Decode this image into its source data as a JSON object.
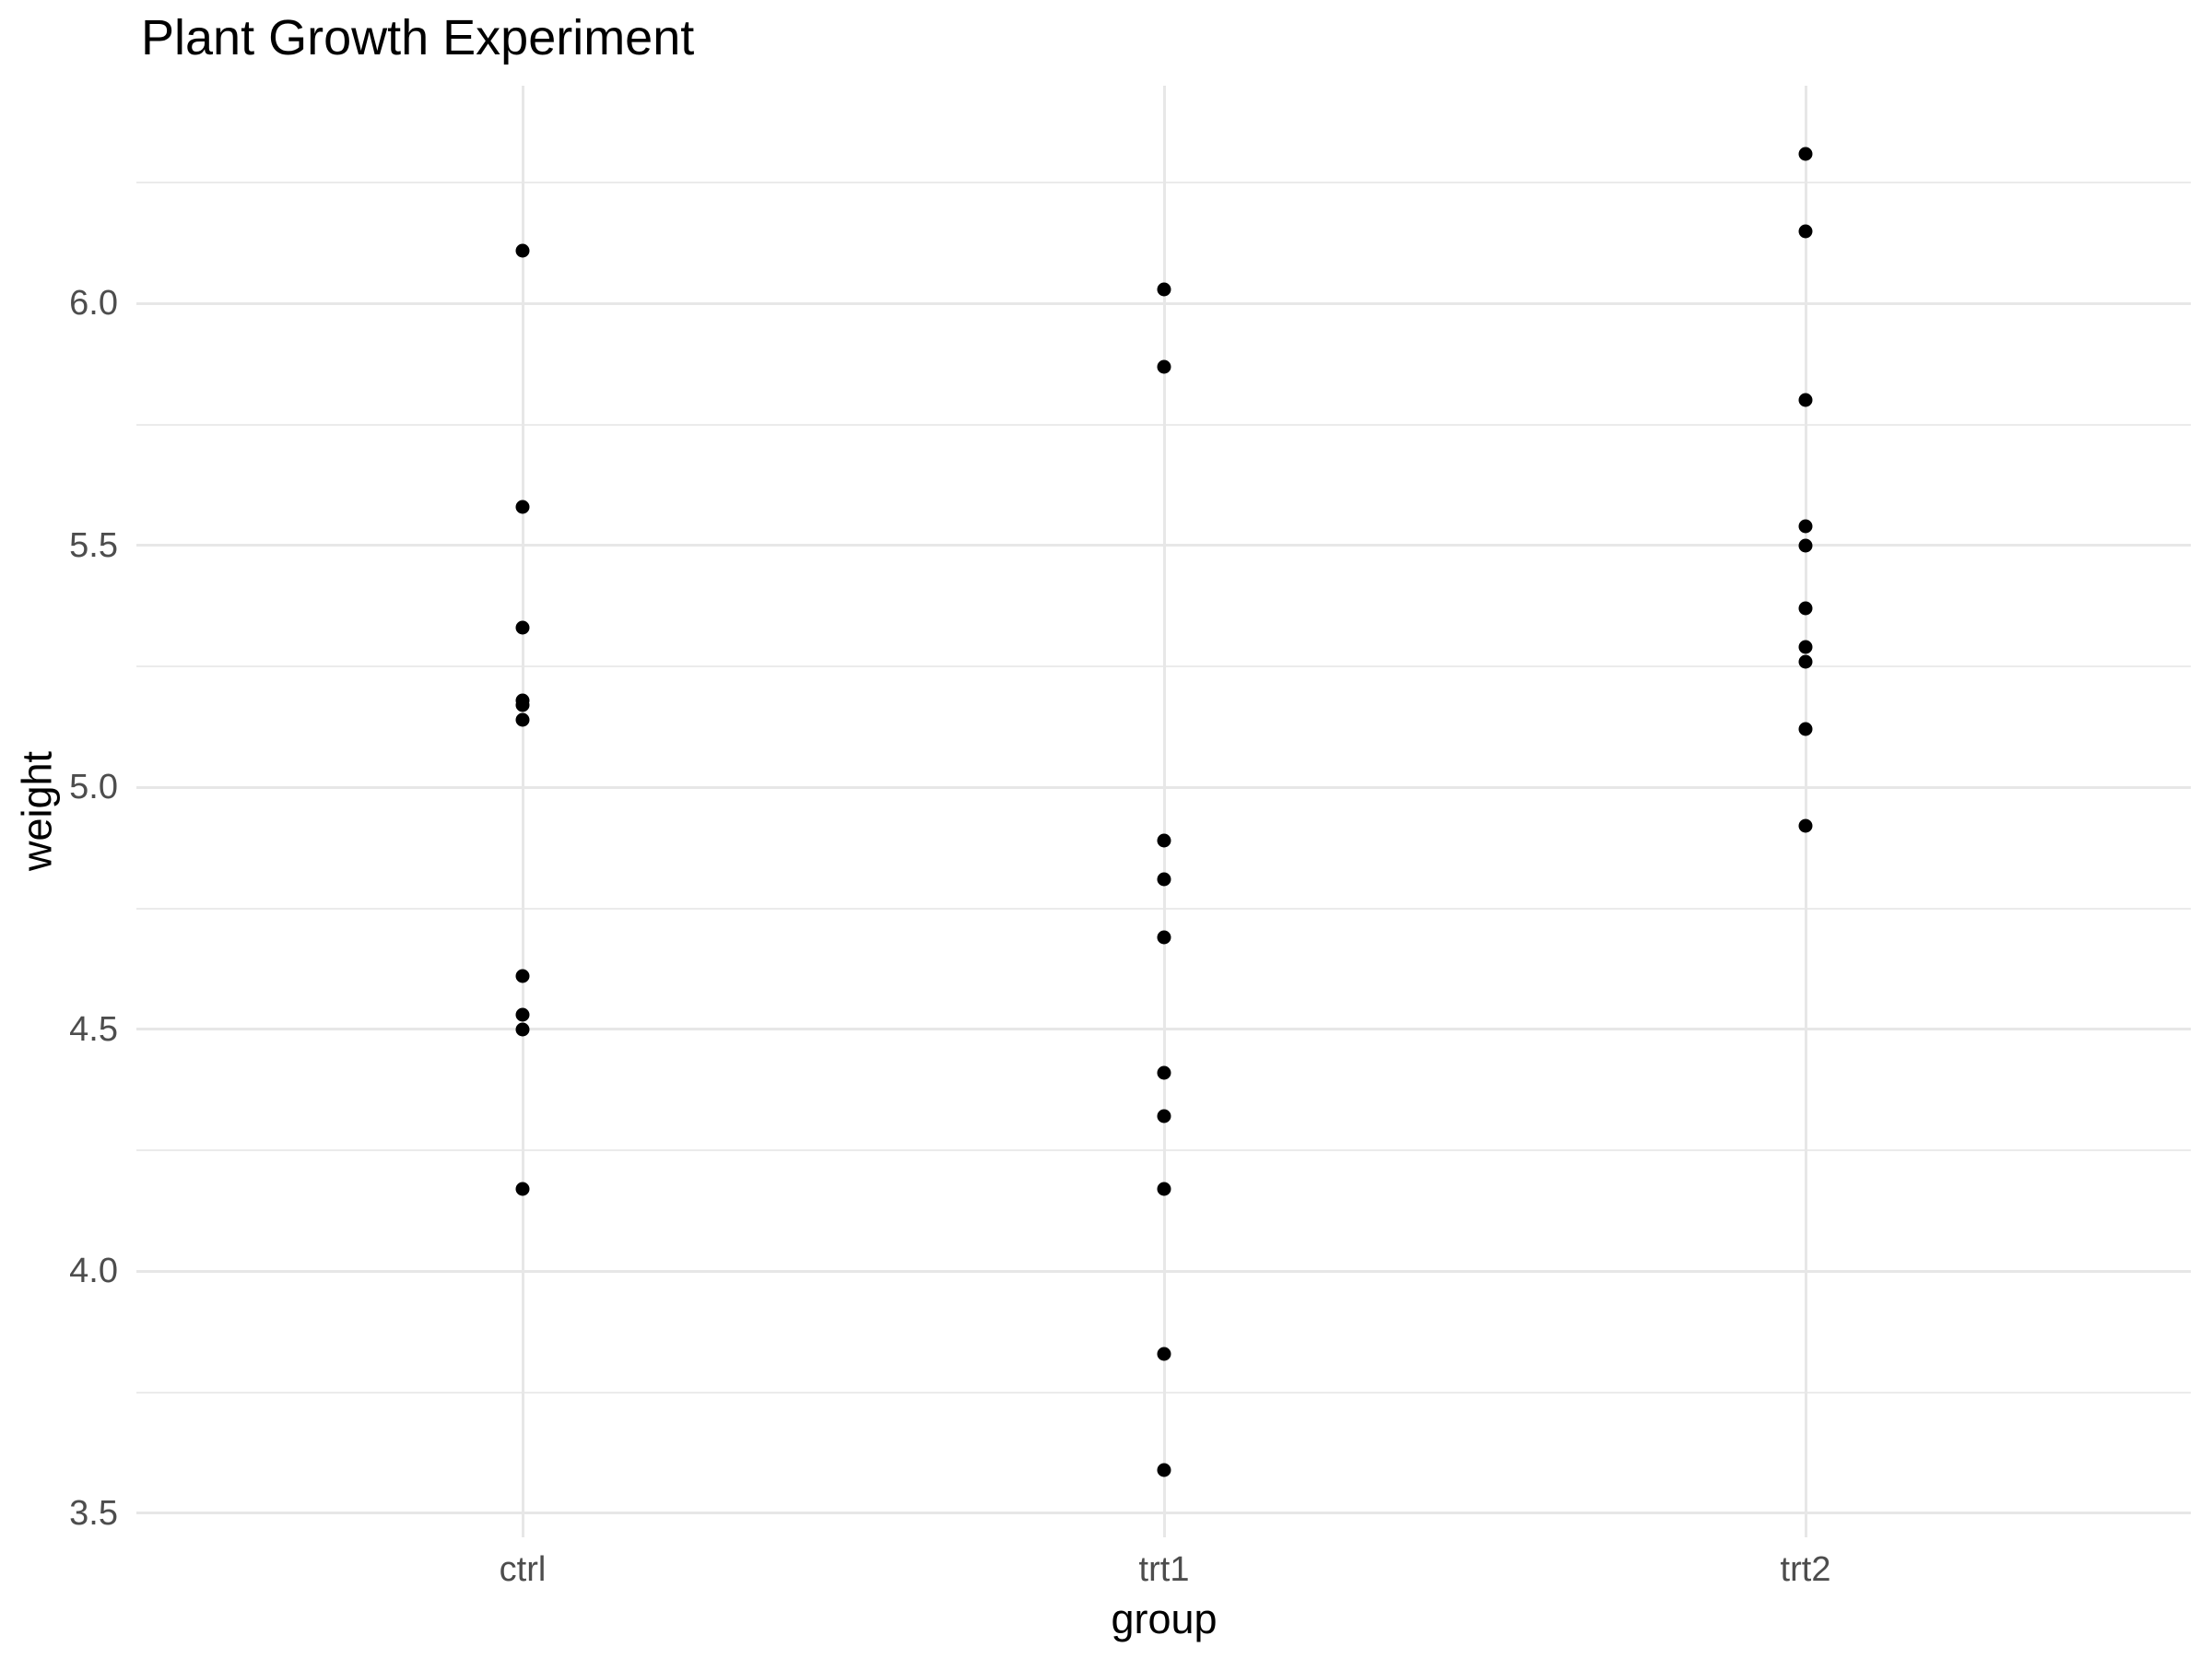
{
  "chart_data": {
    "type": "scatter",
    "title": "Plant Growth Experiment",
    "xlabel": "group",
    "ylabel": "weight",
    "categories": [
      "ctrl",
      "trt1",
      "trt2"
    ],
    "series": [
      {
        "name": "ctrl",
        "values": [
          4.17,
          5.58,
          5.18,
          6.11,
          4.5,
          4.61,
          5.17,
          4.53,
          5.33,
          5.14
        ]
      },
      {
        "name": "trt1",
        "values": [
          4.81,
          4.17,
          4.41,
          3.59,
          5.87,
          3.83,
          6.03,
          4.89,
          4.32,
          4.69
        ]
      },
      {
        "name": "trt2",
        "values": [
          6.31,
          5.12,
          5.54,
          5.5,
          5.37,
          5.29,
          4.92,
          6.15,
          5.8,
          5.26
        ]
      }
    ],
    "y_ticks": [
      {
        "value": 3.5,
        "label": "3.5"
      },
      {
        "value": 4.0,
        "label": "4.0"
      },
      {
        "value": 4.5,
        "label": "4.5"
      },
      {
        "value": 5.0,
        "label": "5.0"
      },
      {
        "value": 5.5,
        "label": "5.5"
      },
      {
        "value": 6.0,
        "label": "6.0"
      }
    ],
    "y_minor_ticks": [
      3.75,
      4.25,
      4.75,
      5.25,
      5.75,
      6.25
    ],
    "ylim": [
      3.45,
      6.45
    ],
    "grid": true,
    "legend": false,
    "colors": {
      "point": "#000000",
      "grid_major": "#e7e7e7",
      "grid_minor": "#ebebeb",
      "tick_label": "#4d4d4d",
      "title": "#000000",
      "axis_title": "#000000",
      "background": "#ffffff"
    }
  }
}
